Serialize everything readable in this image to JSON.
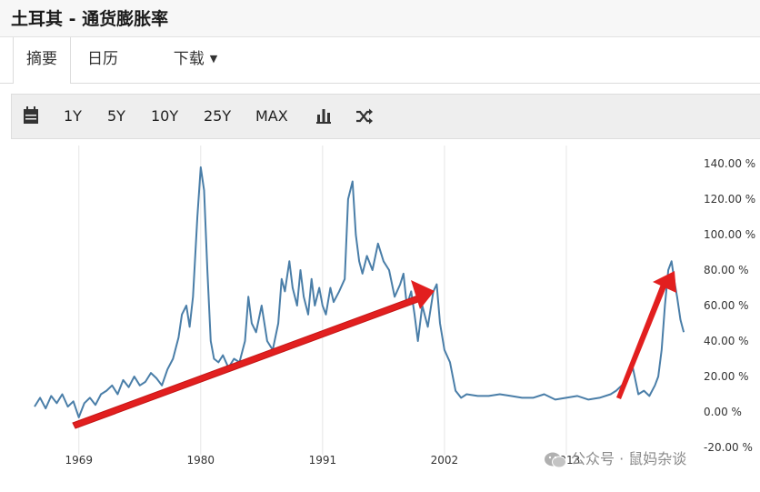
{
  "header": {
    "title": "土耳其 - 通货膨胀率"
  },
  "tabs": [
    {
      "label": "摘要"
    },
    {
      "label": "日历"
    },
    {
      "label": "下载"
    }
  ],
  "toolbar": {
    "ranges": [
      "1Y",
      "5Y",
      "10Y",
      "25Y",
      "MAX"
    ],
    "icons": [
      "calendar-icon",
      "bar-chart-icon",
      "shuffle-icon"
    ]
  },
  "watermark": {
    "text": "公众号 · 鼠妈杂谈"
  },
  "chart_data": {
    "type": "line",
    "title": "",
    "xlabel": "",
    "ylabel": "",
    "x_ticks": [
      "1969",
      "1980",
      "1991",
      "2002",
      "2013"
    ],
    "y_ticks": [
      "140.00 %",
      "120.00 %",
      "100.00 %",
      "80.00 %",
      "60.00 %",
      "40.00 %",
      "20.00 %",
      "0.00 %",
      "-20.00 %"
    ],
    "ylim": [
      -20,
      140
    ],
    "xlim": [
      1965,
      2024
    ],
    "grid": true,
    "line_color": "#4a7ea8",
    "series": [
      {
        "x": [
          1965.0,
          1965.5,
          1966.0,
          1966.5,
          1967.0,
          1967.5,
          1968.0,
          1968.5,
          1969.0,
          1969.5,
          1970.0,
          1970.5,
          1971.0,
          1971.5,
          1972.0,
          1972.5,
          1973.0,
          1973.5,
          1974.0,
          1974.5,
          1975.0,
          1975.5,
          1976.0,
          1976.5,
          1977.0,
          1977.5,
          1978.0,
          1978.3,
          1978.7,
          1979.0,
          1979.3,
          1979.7,
          1980.0,
          1980.3,
          1980.6,
          1980.9,
          1981.2,
          1981.6,
          1982.0,
          1982.5,
          1983.0,
          1983.5,
          1984.0,
          1984.3,
          1984.6,
          1985.0,
          1985.5,
          1986.0,
          1986.5,
          1987.0,
          1987.3,
          1987.6,
          1988.0,
          1988.3,
          1988.7,
          1989.0,
          1989.3,
          1989.7,
          1990.0,
          1990.3,
          1990.7,
          1991.0,
          1991.3,
          1991.7,
          1992.0,
          1992.5,
          1993.0,
          1993.3,
          1993.7,
          1994.0,
          1994.3,
          1994.6,
          1995.0,
          1995.5,
          1996.0,
          1996.5,
          1997.0,
          1997.5,
          1998.0,
          1998.3,
          1998.6,
          1999.0,
          1999.3,
          1999.6,
          2000.0,
          2000.5,
          2001.0,
          2001.3,
          2001.6,
          2002.0,
          2002.5,
          2003.0,
          2003.5,
          2004.0,
          2005.0,
          2006.0,
          2007.0,
          2008.0,
          2009.0,
          2010.0,
          2011.0,
          2012.0,
          2013.0,
          2014.0,
          2015.0,
          2016.0,
          2017.0,
          2017.5,
          2018.0,
          2018.5,
          2019.0,
          2019.5,
          2020.0,
          2020.5,
          2021.0,
          2021.3,
          2021.6,
          2021.9,
          2022.2,
          2022.5,
          2022.8,
          2023.0,
          2023.3,
          2023.6
        ],
        "y": [
          3,
          8,
          2,
          9,
          5,
          10,
          3,
          6,
          -3,
          5,
          8,
          4,
          10,
          12,
          15,
          10,
          18,
          14,
          20,
          15,
          17,
          22,
          19,
          15,
          24,
          30,
          42,
          55,
          60,
          48,
          65,
          110,
          138,
          125,
          80,
          40,
          30,
          28,
          32,
          25,
          30,
          28,
          40,
          65,
          50,
          45,
          60,
          40,
          35,
          50,
          75,
          68,
          85,
          70,
          60,
          80,
          65,
          55,
          75,
          60,
          70,
          60,
          55,
          70,
          62,
          68,
          75,
          120,
          130,
          100,
          85,
          78,
          88,
          80,
          95,
          85,
          80,
          65,
          72,
          78,
          60,
          68,
          55,
          40,
          60,
          48,
          68,
          72,
          50,
          35,
          28,
          12,
          8,
          10,
          9,
          9,
          10,
          9,
          8,
          8,
          10,
          7,
          8,
          9,
          7,
          8,
          10,
          12,
          15,
          18,
          25,
          10,
          12,
          9,
          15,
          20,
          35,
          60,
          80,
          85,
          72,
          65,
          52,
          45
        ]
      }
    ]
  }
}
